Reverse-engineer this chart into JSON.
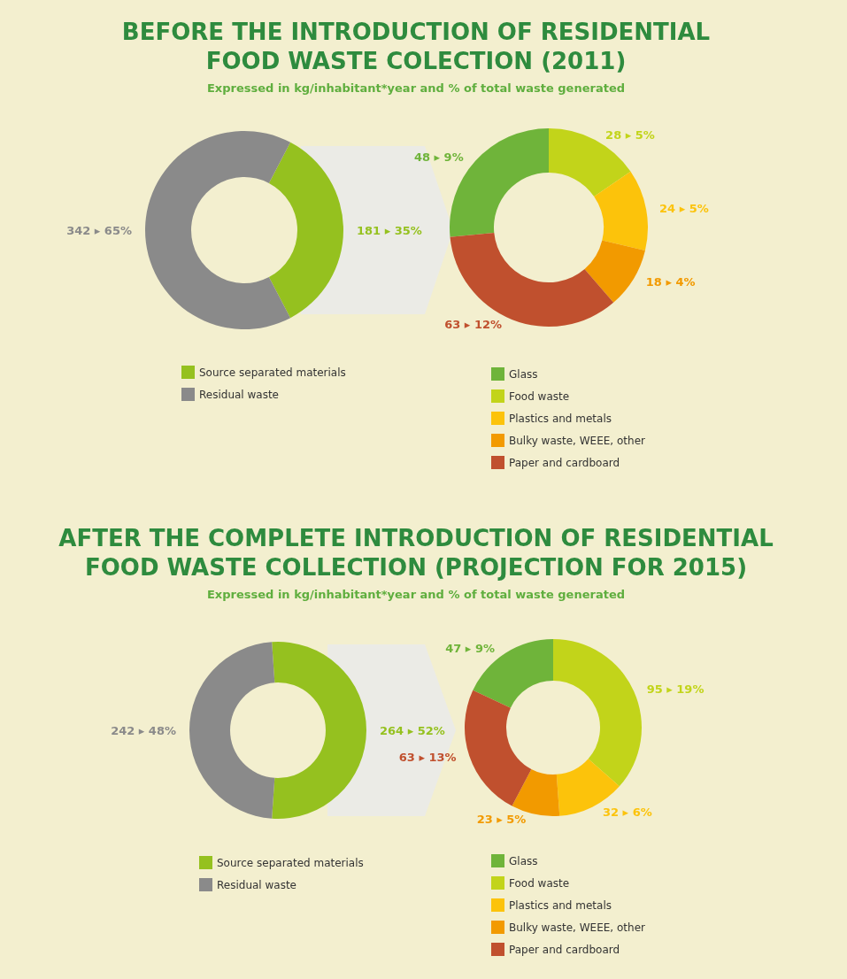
{
  "chart_data": [
    {
      "type": "donut",
      "title": "BEFORE THE INTRODUCTION OF RESIDENTIAL FOOD WASTE COLECTION (2011)",
      "subtitle": "Expressed in kg/inhabitant*year and % of total waste generated",
      "categories": [
        "Source separated materials",
        "Residual waste"
      ],
      "values": [
        181,
        342
      ],
      "value_labels": [
        "181 ▸ 35%",
        "342 ▸ 65%"
      ],
      "colors": [
        "#95c11f",
        "#8a8a8a"
      ],
      "legend": "bottom"
    },
    {
      "type": "donut",
      "categories": [
        "Glass",
        "Food waste",
        "Plastics and metals",
        "Bulky waste, WEEE, other",
        "Paper and cardboard"
      ],
      "values": [
        48,
        28,
        24,
        18,
        63
      ],
      "value_labels": [
        "48 ▸ 9%",
        "28 ▸ 5%",
        "24 ▸ 5%",
        "18 ▸ 4%",
        "63 ▸ 12%"
      ],
      "colors": [
        "#6fb43a",
        "#c2d41a",
        "#fcc30b",
        "#f29a00",
        "#c0502e"
      ],
      "legend": "bottom"
    },
    {
      "type": "donut",
      "title": "AFTER THE COMPLETE INTRODUCTION OF RESIDENTIAL FOOD WASTE COLLECTION (PROJECTION FOR 2015)",
      "subtitle": "Expressed in kg/inhabitant*year and % of total waste generated",
      "categories": [
        "Source separated materials",
        "Residual waste"
      ],
      "values": [
        264,
        242
      ],
      "value_labels": [
        "264 ▸ 52%",
        "242 ▸ 48%"
      ],
      "colors": [
        "#95c11f",
        "#8a8a8a"
      ],
      "legend": "bottom"
    },
    {
      "type": "donut",
      "categories": [
        "Glass",
        "Food waste",
        "Plastics and metals",
        "Bulky waste, WEEE, other",
        "Paper and cardboard"
      ],
      "values": [
        47,
        95,
        32,
        23,
        63
      ],
      "value_labels": [
        "47 ▸ 9%",
        "95 ▸ 19%",
        "32 ▸ 6%",
        "23 ▸ 5%",
        "63 ▸ 13%"
      ],
      "colors": [
        "#6fb43a",
        "#c2d41a",
        "#fcc30b",
        "#f29a00",
        "#c0502e"
      ],
      "legend": "bottom"
    }
  ]
}
